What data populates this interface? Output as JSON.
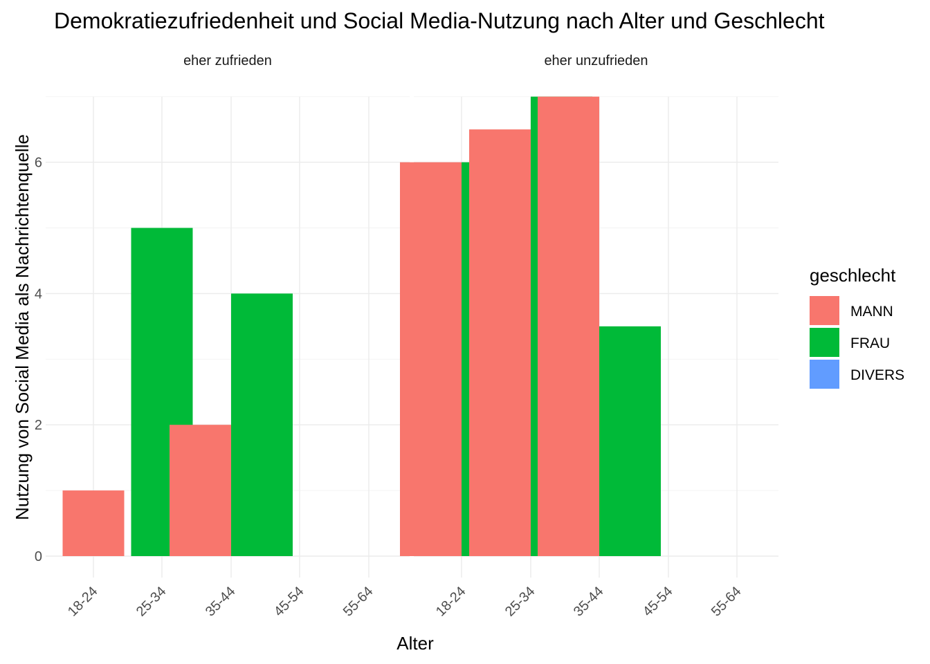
{
  "chart_data": {
    "type": "bar",
    "title": "Demokratiezufriedenheit und Social Media-Nutzung nach Alter und Geschlecht",
    "xlabel": "Alter",
    "ylabel": "Nutzung von Social Media als Nachrichtenquelle",
    "categories": [
      "18-24",
      "25-34",
      "35-44",
      "45-54",
      "55-64"
    ],
    "ylim": [
      0,
      7
    ],
    "yticks": [
      0,
      2,
      4,
      6
    ],
    "grid": true,
    "legend": {
      "title": "geschlecht",
      "position": "right",
      "entries": [
        {
          "label": "MANN",
          "color": "#F8766D"
        },
        {
          "label": "FRAU",
          "color": "#00BA38"
        },
        {
          "label": "DIVERS",
          "color": "#619CFF"
        }
      ]
    },
    "panels": [
      {
        "label": "eher zufrieden",
        "series": [
          {
            "name": "MANN",
            "values": [
              1,
              null,
              2,
              null,
              null
            ]
          },
          {
            "name": "FRAU",
            "values": [
              null,
              5,
              4,
              null,
              null
            ]
          }
        ]
      },
      {
        "label": "eher unzufrieden",
        "series": [
          {
            "name": "MANN",
            "values": [
              6,
              6.5,
              7,
              null,
              null
            ]
          },
          {
            "name": "FRAU",
            "values": [
              6,
              7,
              3.5,
              null,
              null
            ]
          }
        ]
      }
    ]
  }
}
